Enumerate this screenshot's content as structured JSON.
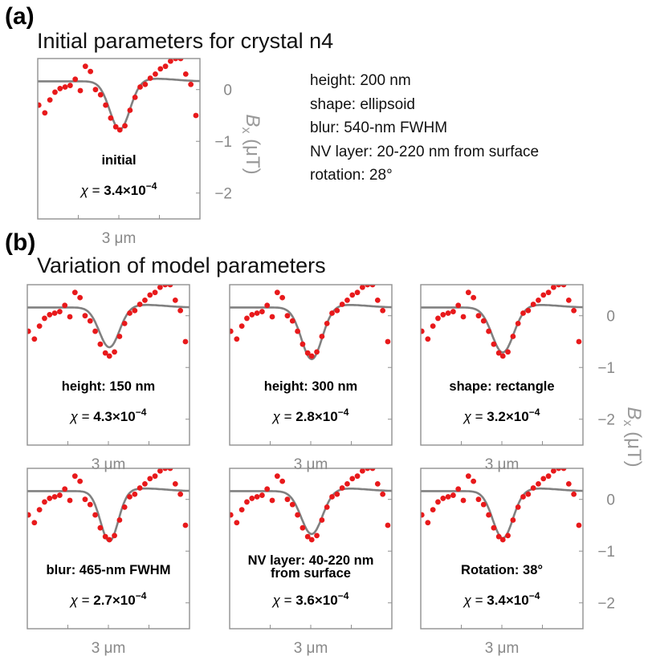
{
  "labels": {
    "panel_a": "(a)",
    "panel_a_title": "Initial parameters for crystal n4",
    "panel_b": "(b)",
    "panel_b_title": "Variation of model parameters"
  },
  "parameters": [
    "height: 200 nm",
    "shape: ellipsoid",
    "blur: 540-nm FWHM",
    "NV layer: 20-220 nm from surface",
    "rotation: 28°"
  ],
  "colors": {
    "data": "#e8191b",
    "fit": "#808080",
    "frame": "#909090",
    "axis_text": "#888888"
  },
  "chart_data": [
    {
      "type": "scatter",
      "id": "initial",
      "annotation": [
        "initial"
      ],
      "chi_value": "3.4×10",
      "chi_exp": "−4",
      "ylabel": "B",
      "ylabel_sub": "x",
      "ylabel_unit": "(μT)",
      "ylim": [
        -2.5,
        0.6
      ],
      "yticks": [
        "0",
        "−1",
        "−2"
      ],
      "yticks_values": [
        0,
        -1,
        -2
      ],
      "xlim": [
        0,
        8
      ],
      "scale_bar": "3 μm",
      "fit_center": 4.05,
      "fit_depth": 0.78,
      "fit_width": 0.7,
      "points": [
        [
          0.05,
          -0.3
        ],
        [
          0.35,
          -0.45
        ],
        [
          0.6,
          -0.2
        ],
        [
          0.85,
          -0.05
        ],
        [
          1.1,
          0.02
        ],
        [
          1.35,
          0.05
        ],
        [
          1.6,
          0.08
        ],
        [
          1.85,
          0.2
        ],
        [
          2.1,
          -0.02
        ],
        [
          2.35,
          0.45
        ],
        [
          2.6,
          0.35
        ],
        [
          2.85,
          0.0
        ],
        [
          3.1,
          -0.1
        ],
        [
          3.35,
          -0.3
        ],
        [
          3.6,
          -0.55
        ],
        [
          3.85,
          -0.72
        ],
        [
          4.05,
          -0.78
        ],
        [
          4.3,
          -0.7
        ],
        [
          4.55,
          -0.4
        ],
        [
          4.8,
          -0.15
        ],
        [
          5.05,
          0.05
        ],
        [
          5.3,
          0.1
        ],
        [
          5.55,
          0.22
        ],
        [
          5.8,
          0.3
        ],
        [
          6.05,
          0.4
        ],
        [
          6.3,
          0.45
        ],
        [
          6.55,
          0.55
        ],
        [
          6.8,
          0.6
        ],
        [
          7.05,
          0.6
        ],
        [
          7.3,
          0.3
        ],
        [
          7.55,
          0.1
        ],
        [
          7.8,
          -0.5
        ]
      ]
    },
    {
      "type": "scatter",
      "id": "height-150",
      "annotation": [
        "height: 150 nm"
      ],
      "chi_value": "4.3×10",
      "chi_exp": "−4",
      "ylim": [
        -2.5,
        0.6
      ],
      "yticks": [],
      "xlim": [
        0,
        8
      ],
      "scale_bar": "3 μm",
      "fit_center": 4.05,
      "fit_depth": 0.62,
      "fit_width": 0.7,
      "points": [
        [
          0.05,
          -0.3
        ],
        [
          0.35,
          -0.45
        ],
        [
          0.6,
          -0.2
        ],
        [
          0.85,
          -0.05
        ],
        [
          1.1,
          0.02
        ],
        [
          1.35,
          0.05
        ],
        [
          1.6,
          0.08
        ],
        [
          1.85,
          0.2
        ],
        [
          2.1,
          -0.02
        ],
        [
          2.35,
          0.45
        ],
        [
          2.6,
          0.35
        ],
        [
          2.85,
          0.0
        ],
        [
          3.1,
          -0.1
        ],
        [
          3.35,
          -0.3
        ],
        [
          3.6,
          -0.55
        ],
        [
          3.85,
          -0.72
        ],
        [
          4.05,
          -0.78
        ],
        [
          4.3,
          -0.7
        ],
        [
          4.55,
          -0.4
        ],
        [
          4.8,
          -0.15
        ],
        [
          5.05,
          0.05
        ],
        [
          5.3,
          0.1
        ],
        [
          5.55,
          0.22
        ],
        [
          5.8,
          0.3
        ],
        [
          6.05,
          0.4
        ],
        [
          6.3,
          0.45
        ],
        [
          6.55,
          0.55
        ],
        [
          6.8,
          0.6
        ],
        [
          7.05,
          0.6
        ],
        [
          7.3,
          0.3
        ],
        [
          7.55,
          0.1
        ],
        [
          7.8,
          -0.5
        ]
      ]
    },
    {
      "type": "scatter",
      "id": "height-300",
      "annotation": [
        "height: 300 nm"
      ],
      "chi_value": "2.8×10",
      "chi_exp": "−4",
      "ylim": [
        -2.5,
        0.6
      ],
      "yticks": [],
      "xlim": [
        0,
        8
      ],
      "scale_bar": "3 μm",
      "fit_center": 4.05,
      "fit_depth": 0.85,
      "fit_width": 0.72,
      "points": [
        [
          0.05,
          -0.3
        ],
        [
          0.35,
          -0.45
        ],
        [
          0.6,
          -0.2
        ],
        [
          0.85,
          -0.05
        ],
        [
          1.1,
          0.02
        ],
        [
          1.35,
          0.05
        ],
        [
          1.6,
          0.08
        ],
        [
          1.85,
          0.2
        ],
        [
          2.1,
          -0.02
        ],
        [
          2.35,
          0.45
        ],
        [
          2.6,
          0.35
        ],
        [
          2.85,
          0.0
        ],
        [
          3.1,
          -0.1
        ],
        [
          3.35,
          -0.3
        ],
        [
          3.6,
          -0.55
        ],
        [
          3.85,
          -0.72
        ],
        [
          4.05,
          -0.78
        ],
        [
          4.3,
          -0.7
        ],
        [
          4.55,
          -0.4
        ],
        [
          4.8,
          -0.15
        ],
        [
          5.05,
          0.05
        ],
        [
          5.3,
          0.1
        ],
        [
          5.55,
          0.22
        ],
        [
          5.8,
          0.3
        ],
        [
          6.05,
          0.4
        ],
        [
          6.3,
          0.45
        ],
        [
          6.55,
          0.55
        ],
        [
          6.8,
          0.6
        ],
        [
          7.05,
          0.6
        ],
        [
          7.3,
          0.3
        ],
        [
          7.55,
          0.1
        ],
        [
          7.8,
          -0.5
        ]
      ]
    },
    {
      "type": "scatter",
      "id": "shape-rectangle",
      "annotation": [
        "shape: rectangle"
      ],
      "chi_value": "3.2×10",
      "chi_exp": "−4",
      "ylabel": "B",
      "ylabel_sub": "x",
      "ylabel_unit": "(μT)",
      "ylim": [
        -2.5,
        0.6
      ],
      "yticks": [
        "0",
        "−1",
        "−2"
      ],
      "yticks_values": [
        0,
        -1,
        -2
      ],
      "xlim": [
        0,
        8
      ],
      "scale_bar": "3 μm",
      "fit_center": 4.05,
      "fit_depth": 0.72,
      "fit_width": 0.75,
      "points": [
        [
          0.05,
          -0.3
        ],
        [
          0.35,
          -0.45
        ],
        [
          0.6,
          -0.2
        ],
        [
          0.85,
          -0.05
        ],
        [
          1.1,
          0.02
        ],
        [
          1.35,
          0.05
        ],
        [
          1.6,
          0.08
        ],
        [
          1.85,
          0.2
        ],
        [
          2.1,
          -0.02
        ],
        [
          2.35,
          0.45
        ],
        [
          2.6,
          0.35
        ],
        [
          2.85,
          0.0
        ],
        [
          3.1,
          -0.1
        ],
        [
          3.35,
          -0.3
        ],
        [
          3.6,
          -0.55
        ],
        [
          3.85,
          -0.72
        ],
        [
          4.05,
          -0.78
        ],
        [
          4.3,
          -0.7
        ],
        [
          4.55,
          -0.4
        ],
        [
          4.8,
          -0.15
        ],
        [
          5.05,
          0.05
        ],
        [
          5.3,
          0.1
        ],
        [
          5.55,
          0.22
        ],
        [
          5.8,
          0.3
        ],
        [
          6.05,
          0.4
        ],
        [
          6.3,
          0.45
        ],
        [
          6.55,
          0.55
        ],
        [
          6.8,
          0.6
        ],
        [
          7.05,
          0.6
        ],
        [
          7.3,
          0.3
        ],
        [
          7.55,
          0.1
        ],
        [
          7.8,
          -0.5
        ]
      ]
    },
    {
      "type": "scatter",
      "id": "blur-465",
      "annotation": [
        "blur: 465-nm FWHM"
      ],
      "chi_value": "2.7×10",
      "chi_exp": "−4",
      "ylim": [
        -2.5,
        0.6
      ],
      "yticks": [],
      "xlim": [
        0,
        8
      ],
      "scale_bar": "3 μm",
      "fit_center": 4.05,
      "fit_depth": 0.82,
      "fit_width": 0.62,
      "points": [
        [
          0.05,
          -0.3
        ],
        [
          0.35,
          -0.45
        ],
        [
          0.6,
          -0.2
        ],
        [
          0.85,
          -0.05
        ],
        [
          1.1,
          0.02
        ],
        [
          1.35,
          0.05
        ],
        [
          1.6,
          0.08
        ],
        [
          1.85,
          0.2
        ],
        [
          2.1,
          -0.02
        ],
        [
          2.35,
          0.45
        ],
        [
          2.6,
          0.35
        ],
        [
          2.85,
          0.0
        ],
        [
          3.1,
          -0.1
        ],
        [
          3.35,
          -0.3
        ],
        [
          3.6,
          -0.55
        ],
        [
          3.85,
          -0.72
        ],
        [
          4.05,
          -0.78
        ],
        [
          4.3,
          -0.7
        ],
        [
          4.55,
          -0.4
        ],
        [
          4.8,
          -0.15
        ],
        [
          5.05,
          0.05
        ],
        [
          5.3,
          0.1
        ],
        [
          5.55,
          0.22
        ],
        [
          5.8,
          0.3
        ],
        [
          6.05,
          0.4
        ],
        [
          6.3,
          0.45
        ],
        [
          6.55,
          0.55
        ],
        [
          6.8,
          0.6
        ],
        [
          7.05,
          0.6
        ],
        [
          7.3,
          0.3
        ],
        [
          7.55,
          0.1
        ],
        [
          7.8,
          -0.5
        ]
      ]
    },
    {
      "type": "scatter",
      "id": "nv-layer-40-220",
      "annotation": [
        "NV layer: 40-220 nm",
        "from surface"
      ],
      "chi_value": "3.6×10",
      "chi_exp": "−4",
      "ylim": [
        -2.5,
        0.6
      ],
      "yticks": [],
      "xlim": [
        0,
        8
      ],
      "scale_bar": "3 μm",
      "fit_center": 4.05,
      "fit_depth": 0.68,
      "fit_width": 0.74,
      "points": [
        [
          0.05,
          -0.3
        ],
        [
          0.35,
          -0.45
        ],
        [
          0.6,
          -0.2
        ],
        [
          0.85,
          -0.05
        ],
        [
          1.1,
          0.02
        ],
        [
          1.35,
          0.05
        ],
        [
          1.6,
          0.08
        ],
        [
          1.85,
          0.2
        ],
        [
          2.1,
          -0.02
        ],
        [
          2.35,
          0.45
        ],
        [
          2.6,
          0.35
        ],
        [
          2.85,
          0.0
        ],
        [
          3.1,
          -0.1
        ],
        [
          3.35,
          -0.3
        ],
        [
          3.6,
          -0.55
        ],
        [
          3.85,
          -0.72
        ],
        [
          4.05,
          -0.78
        ],
        [
          4.3,
          -0.7
        ],
        [
          4.55,
          -0.4
        ],
        [
          4.8,
          -0.15
        ],
        [
          5.05,
          0.05
        ],
        [
          5.3,
          0.1
        ],
        [
          5.55,
          0.22
        ],
        [
          5.8,
          0.3
        ],
        [
          6.05,
          0.4
        ],
        [
          6.3,
          0.45
        ],
        [
          6.55,
          0.55
        ],
        [
          6.8,
          0.6
        ],
        [
          7.05,
          0.6
        ],
        [
          7.3,
          0.3
        ],
        [
          7.55,
          0.1
        ],
        [
          7.8,
          -0.5
        ]
      ]
    },
    {
      "type": "scatter",
      "id": "rotation-38",
      "annotation": [
        "Rotation: 38°"
      ],
      "chi_value": "3.4×10",
      "chi_exp": "−4",
      "ylim": [
        -2.5,
        0.6
      ],
      "yticks": [
        "0",
        "−1",
        "−2"
      ],
      "yticks_values": [
        0,
        -1,
        -2
      ],
      "xlim": [
        0,
        8
      ],
      "scale_bar": "3 μm",
      "fit_center": 4.05,
      "fit_depth": 0.76,
      "fit_width": 0.7,
      "points": [
        [
          0.05,
          -0.3
        ],
        [
          0.35,
          -0.45
        ],
        [
          0.6,
          -0.2
        ],
        [
          0.85,
          -0.05
        ],
        [
          1.1,
          0.02
        ],
        [
          1.35,
          0.05
        ],
        [
          1.6,
          0.08
        ],
        [
          1.85,
          0.2
        ],
        [
          2.1,
          -0.02
        ],
        [
          2.35,
          0.45
        ],
        [
          2.6,
          0.35
        ],
        [
          2.85,
          0.0
        ],
        [
          3.1,
          -0.1
        ],
        [
          3.35,
          -0.3
        ],
        [
          3.6,
          -0.55
        ],
        [
          3.85,
          -0.72
        ],
        [
          4.05,
          -0.78
        ],
        [
          4.3,
          -0.7
        ],
        [
          4.55,
          -0.4
        ],
        [
          4.8,
          -0.15
        ],
        [
          5.05,
          0.05
        ],
        [
          5.3,
          0.1
        ],
        [
          5.55,
          0.22
        ],
        [
          5.8,
          0.3
        ],
        [
          6.05,
          0.4
        ],
        [
          6.3,
          0.45
        ],
        [
          6.55,
          0.55
        ],
        [
          6.8,
          0.6
        ],
        [
          7.05,
          0.6
        ],
        [
          7.3,
          0.3
        ],
        [
          7.55,
          0.1
        ],
        [
          7.8,
          -0.5
        ]
      ]
    }
  ]
}
